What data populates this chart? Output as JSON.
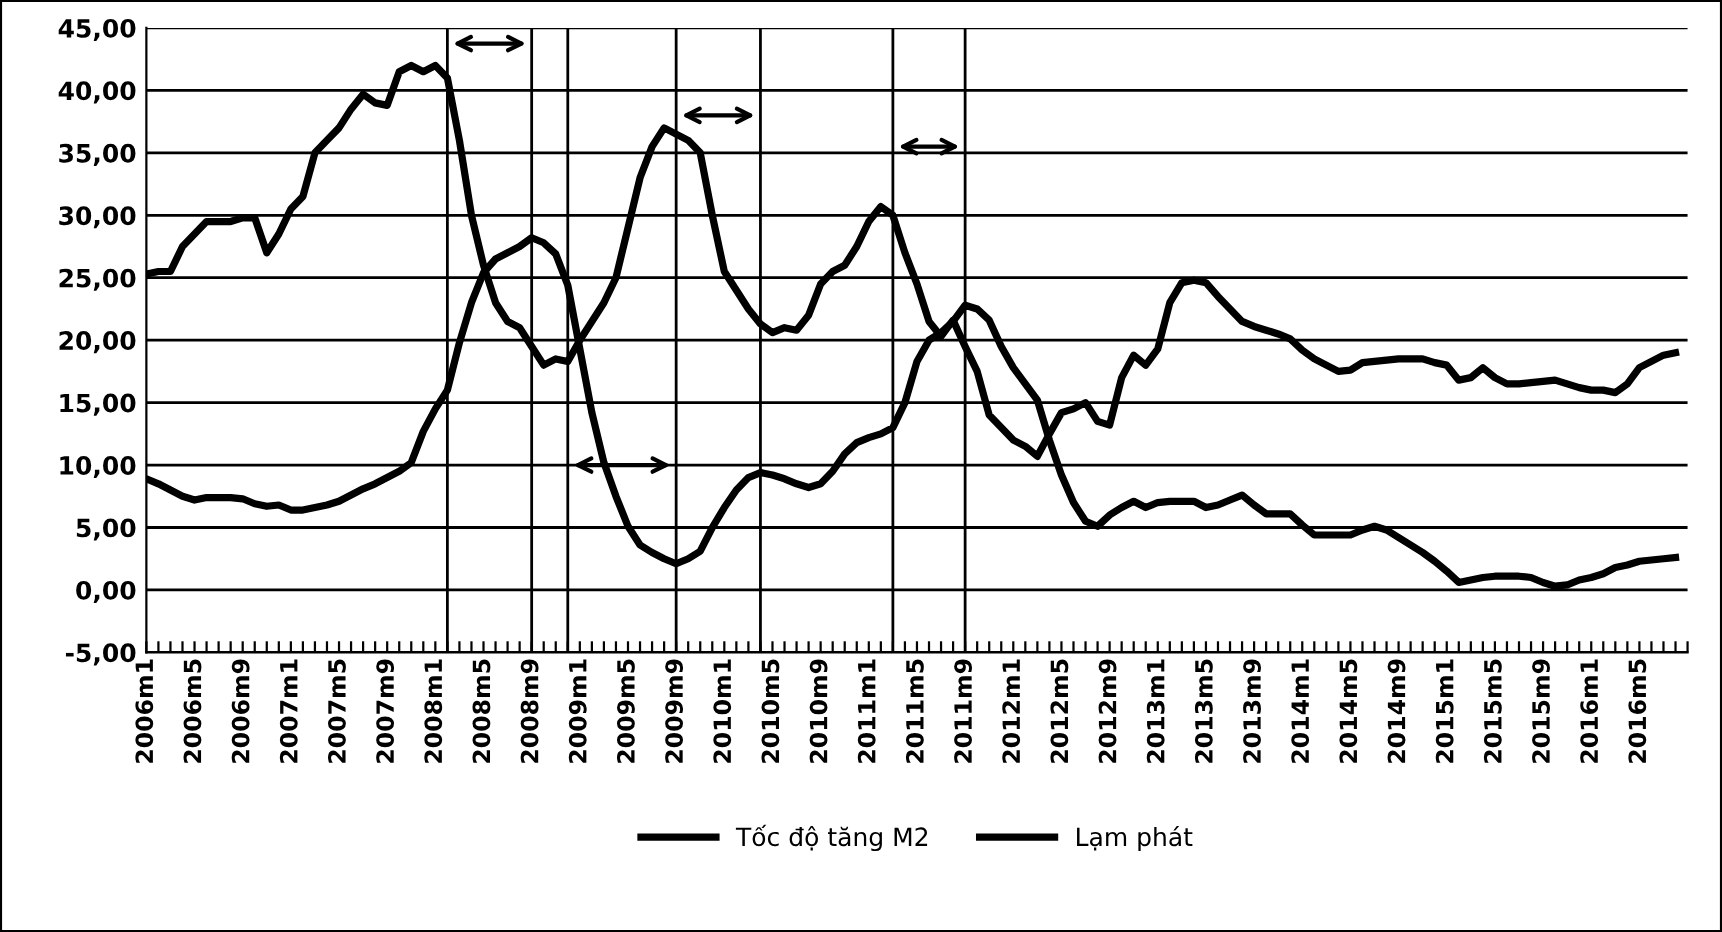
{
  "chart_data": {
    "type": "line",
    "x": [
      "2006-01",
      "2006-02",
      "2006-03",
      "2006-04",
      "2006-05",
      "2006-06",
      "2006-07",
      "2006-08",
      "2006-09",
      "2006-10",
      "2006-11",
      "2006-12",
      "2007-01",
      "2007-02",
      "2007-03",
      "2007-04",
      "2007-05",
      "2007-06",
      "2007-07",
      "2007-08",
      "2007-09",
      "2007-10",
      "2007-11",
      "2007-12",
      "2008-01",
      "2008-02",
      "2008-03",
      "2008-04",
      "2008-05",
      "2008-06",
      "2008-07",
      "2008-08",
      "2008-09",
      "2008-10",
      "2008-11",
      "2008-12",
      "2009-01",
      "2009-02",
      "2009-03",
      "2009-04",
      "2009-05",
      "2009-06",
      "2009-07",
      "2009-08",
      "2009-09",
      "2009-10",
      "2009-11",
      "2009-12",
      "2010-01",
      "2010-02",
      "2010-03",
      "2010-04",
      "2010-05",
      "2010-06",
      "2010-07",
      "2010-08",
      "2010-09",
      "2010-10",
      "2010-11",
      "2010-12",
      "2011-01",
      "2011-02",
      "2011-03",
      "2011-04",
      "2011-05",
      "2011-06",
      "2011-07",
      "2011-08",
      "2011-09",
      "2011-10",
      "2011-11",
      "2011-12",
      "2012-01",
      "2012-02",
      "2012-03",
      "2012-04",
      "2012-05",
      "2012-06",
      "2012-07",
      "2012-08",
      "2012-09",
      "2012-10",
      "2012-11",
      "2012-12",
      "2013-01",
      "2013-02",
      "2013-03",
      "2013-04",
      "2013-05",
      "2013-06",
      "2013-07",
      "2013-08",
      "2013-09",
      "2013-10",
      "2013-11",
      "2013-12",
      "2014-01",
      "2014-02",
      "2014-03",
      "2014-04",
      "2014-05",
      "2014-06",
      "2014-07",
      "2014-08",
      "2014-09",
      "2014-10",
      "2014-11",
      "2014-12",
      "2015-01",
      "2015-02",
      "2015-03",
      "2015-04",
      "2015-05",
      "2015-06",
      "2015-07",
      "2015-08",
      "2015-09",
      "2015-10",
      "2015-11",
      "2015-12",
      "2016-01",
      "2016-02",
      "2016-03",
      "2016-04",
      "2016-05",
      "2016-06",
      "2016-07",
      "2016-08"
    ],
    "series": [
      {
        "name": "Tốc độ tăng M2",
        "color": "#000000",
        "values": [
          25.3,
          25.5,
          25.5,
          27.5,
          28.5,
          29.5,
          29.5,
          29.5,
          29.8,
          29.8,
          27.0,
          28.5,
          30.5,
          31.5,
          35.0,
          36.0,
          37.0,
          38.5,
          39.7,
          39.0,
          38.8,
          41.5,
          42.0,
          41.5,
          42.0,
          41.0,
          36.0,
          30.0,
          26.0,
          23.0,
          21.5,
          21.0,
          19.5,
          18.0,
          18.5,
          18.3,
          20.0,
          21.5,
          23.0,
          25.0,
          29.0,
          33.0,
          35.5,
          37.0,
          36.5,
          36.0,
          35.0,
          30.0,
          25.5,
          24.0,
          22.5,
          21.3,
          20.6,
          21.0,
          20.8,
          22.0,
          24.5,
          25.5,
          26.0,
          27.5,
          29.5,
          30.7,
          30.0,
          27.0,
          24.5,
          21.5,
          20.3,
          21.6,
          19.5,
          17.5,
          14.0,
          13.0,
          12.0,
          11.5,
          10.7,
          12.5,
          14.2,
          14.5,
          15.0,
          13.5,
          13.2,
          17.0,
          18.8,
          18.0,
          19.3,
          23.0,
          24.6,
          24.8,
          24.6,
          23.5,
          22.5,
          21.5,
          21.1,
          20.8,
          20.5,
          20.1,
          19.2,
          18.5,
          18.0,
          17.5,
          17.6,
          18.2,
          18.3,
          18.4,
          18.5,
          18.5,
          18.5,
          18.2,
          18.0,
          16.8,
          17.0,
          17.8,
          17.0,
          16.5,
          16.5,
          16.6,
          16.7,
          16.8,
          16.5,
          16.2,
          16.0,
          16.0,
          15.8,
          16.5,
          17.8,
          18.3,
          18.8,
          19.0
        ]
      },
      {
        "name": "Lạm phát",
        "color": "#000000",
        "values": [
          8.9,
          8.5,
          8.0,
          7.5,
          7.2,
          7.4,
          7.4,
          7.4,
          7.3,
          6.9,
          6.7,
          6.8,
          6.4,
          6.4,
          6.6,
          6.8,
          7.1,
          7.6,
          8.1,
          8.5,
          9.0,
          9.5,
          10.2,
          12.7,
          14.5,
          16.0,
          19.8,
          23.0,
          25.4,
          26.5,
          27.0,
          27.5,
          28.2,
          27.8,
          26.9,
          24.4,
          19.3,
          14.2,
          10.2,
          7.5,
          5.1,
          3.6,
          3.0,
          2.5,
          2.1,
          2.5,
          3.1,
          5.0,
          6.6,
          8.0,
          9.0,
          9.4,
          9.2,
          8.9,
          8.5,
          8.2,
          8.5,
          9.5,
          10.9,
          11.8,
          12.2,
          12.5,
          13.0,
          15.0,
          18.3,
          20.0,
          20.6,
          21.5,
          22.8,
          22.5,
          21.6,
          19.5,
          17.8,
          16.5,
          15.2,
          12.0,
          9.2,
          7.0,
          5.5,
          5.1,
          6.0,
          6.6,
          7.1,
          6.6,
          7.0,
          7.1,
          7.1,
          7.1,
          6.6,
          6.8,
          7.2,
          7.6,
          6.8,
          6.1,
          6.1,
          6.1,
          5.2,
          4.4,
          4.4,
          4.4,
          4.4,
          4.8,
          5.1,
          4.8,
          4.2,
          3.6,
          3.0,
          2.3,
          1.5,
          0.6,
          0.8,
          1.0,
          1.1,
          1.1,
          1.1,
          1.0,
          0.6,
          0.3,
          0.4,
          0.8,
          1.0,
          1.3,
          1.8,
          2.0,
          2.3,
          2.4,
          2.5,
          2.6
        ]
      }
    ],
    "xlim": [
      "2006-01",
      "2016-09"
    ],
    "xticks": [
      {
        "value": "2006-01",
        "label": "2006m1"
      },
      {
        "value": "2006-02",
        "label": null
      },
      {
        "value": "2006-03",
        "label": null
      },
      {
        "value": "2006-04",
        "label": null
      },
      {
        "value": "2006-05",
        "label": "2006m5"
      },
      {
        "value": "2006-06",
        "label": null
      },
      {
        "value": "2006-07",
        "label": null
      },
      {
        "value": "2006-08",
        "label": null
      },
      {
        "value": "2006-09",
        "label": "2006m9"
      },
      {
        "value": "2006-10",
        "label": null
      },
      {
        "value": "2006-11",
        "label": null
      },
      {
        "value": "2006-12",
        "label": null
      },
      {
        "value": "2007-01",
        "label": "2007m1"
      },
      {
        "value": "2007-02",
        "label": null
      },
      {
        "value": "2007-03",
        "label": null
      },
      {
        "value": "2007-04",
        "label": null
      },
      {
        "value": "2007-05",
        "label": "2007m5"
      },
      {
        "value": "2007-06",
        "label": null
      },
      {
        "value": "2007-07",
        "label": null
      },
      {
        "value": "2007-08",
        "label": null
      },
      {
        "value": "2007-09",
        "label": "2007m9"
      },
      {
        "value": "2007-10",
        "label": null
      },
      {
        "value": "2007-11",
        "label": null
      },
      {
        "value": "2007-12",
        "label": null
      },
      {
        "value": "2008-01",
        "label": "2008m1"
      },
      {
        "value": "2008-02",
        "label": null
      },
      {
        "value": "2008-03",
        "label": null
      },
      {
        "value": "2008-04",
        "label": null
      },
      {
        "value": "2008-05",
        "label": "2008m5"
      },
      {
        "value": "2008-06",
        "label": null
      },
      {
        "value": "2008-07",
        "label": null
      },
      {
        "value": "2008-08",
        "label": null
      },
      {
        "value": "2008-09",
        "label": "2008m9"
      },
      {
        "value": "2008-10",
        "label": null
      },
      {
        "value": "2008-11",
        "label": null
      },
      {
        "value": "2008-12",
        "label": null
      },
      {
        "value": "2009-01",
        "label": "2009m1"
      },
      {
        "value": "2009-02",
        "label": null
      },
      {
        "value": "2009-03",
        "label": null
      },
      {
        "value": "2009-04",
        "label": null
      },
      {
        "value": "2009-05",
        "label": "2009m5"
      },
      {
        "value": "2009-06",
        "label": null
      },
      {
        "value": "2009-07",
        "label": null
      },
      {
        "value": "2009-08",
        "label": null
      },
      {
        "value": "2009-09",
        "label": "2009m9"
      },
      {
        "value": "2009-10",
        "label": null
      },
      {
        "value": "2009-11",
        "label": null
      },
      {
        "value": "2009-12",
        "label": null
      },
      {
        "value": "2010-01",
        "label": "2010m1"
      },
      {
        "value": "2010-02",
        "label": null
      },
      {
        "value": "2010-03",
        "label": null
      },
      {
        "value": "2010-04",
        "label": null
      },
      {
        "value": "2010-05",
        "label": "2010m5"
      },
      {
        "value": "2010-06",
        "label": null
      },
      {
        "value": "2010-07",
        "label": null
      },
      {
        "value": "2010-08",
        "label": null
      },
      {
        "value": "2010-09",
        "label": "2010m9"
      },
      {
        "value": "2010-10",
        "label": null
      },
      {
        "value": "2010-11",
        "label": null
      },
      {
        "value": "2010-12",
        "label": null
      },
      {
        "value": "2011-01",
        "label": "2011m1"
      },
      {
        "value": "2011-02",
        "label": null
      },
      {
        "value": "2011-03",
        "label": null
      },
      {
        "value": "2011-04",
        "label": null
      },
      {
        "value": "2011-05",
        "label": "2011m5"
      },
      {
        "value": "2011-06",
        "label": null
      },
      {
        "value": "2011-07",
        "label": null
      },
      {
        "value": "2011-08",
        "label": null
      },
      {
        "value": "2011-09",
        "label": "2011m9"
      },
      {
        "value": "2011-10",
        "label": null
      },
      {
        "value": "2011-11",
        "label": null
      },
      {
        "value": "2011-12",
        "label": null
      },
      {
        "value": "2012-01",
        "label": "2012m1"
      },
      {
        "value": "2012-02",
        "label": null
      },
      {
        "value": "2012-03",
        "label": null
      },
      {
        "value": "2012-04",
        "label": null
      },
      {
        "value": "2012-05",
        "label": "2012m5"
      },
      {
        "value": "2012-06",
        "label": null
      },
      {
        "value": "2012-07",
        "label": null
      },
      {
        "value": "2012-08",
        "label": null
      },
      {
        "value": "2012-09",
        "label": "2012m9"
      },
      {
        "value": "2012-10",
        "label": null
      },
      {
        "value": "2012-11",
        "label": null
      },
      {
        "value": "2012-12",
        "label": null
      },
      {
        "value": "2013-01",
        "label": "2013m1"
      },
      {
        "value": "2013-02",
        "label": null
      },
      {
        "value": "2013-03",
        "label": null
      },
      {
        "value": "2013-04",
        "label": null
      },
      {
        "value": "2013-05",
        "label": "2013m5"
      },
      {
        "value": "2013-06",
        "label": null
      },
      {
        "value": "2013-07",
        "label": null
      },
      {
        "value": "2013-08",
        "label": null
      },
      {
        "value": "2013-09",
        "label": "2013m9"
      },
      {
        "value": "2013-10",
        "label": null
      },
      {
        "value": "2013-11",
        "label": null
      },
      {
        "value": "2013-12",
        "label": null
      },
      {
        "value": "2014-01",
        "label": "2014m1"
      },
      {
        "value": "2014-02",
        "label": null
      },
      {
        "value": "2014-03",
        "label": null
      },
      {
        "value": "2014-04",
        "label": null
      },
      {
        "value": "2014-05",
        "label": "2014m5"
      },
      {
        "value": "2014-06",
        "label": null
      },
      {
        "value": "2014-07",
        "label": null
      },
      {
        "value": "2014-08",
        "label": null
      },
      {
        "value": "2014-09",
        "label": "2014m9"
      },
      {
        "value": "2014-10",
        "label": null
      },
      {
        "value": "2014-11",
        "label": null
      },
      {
        "value": "2014-12",
        "label": null
      },
      {
        "value": "2015-01",
        "label": "2015m1"
      },
      {
        "value": "2015-02",
        "label": null
      },
      {
        "value": "2015-03",
        "label": null
      },
      {
        "value": "2015-04",
        "label": null
      },
      {
        "value": "2015-05",
        "label": "2015m5"
      },
      {
        "value": "2015-06",
        "label": null
      },
      {
        "value": "2015-07",
        "label": null
      },
      {
        "value": "2015-08",
        "label": null
      },
      {
        "value": "2015-09",
        "label": "2015m9"
      },
      {
        "value": "2015-10",
        "label": null
      },
      {
        "value": "2015-11",
        "label": null
      },
      {
        "value": "2015-12",
        "label": null
      },
      {
        "value": "2016-01",
        "label": "2016m1"
      },
      {
        "value": "2016-02",
        "label": null
      },
      {
        "value": "2016-03",
        "label": null
      },
      {
        "value": "2016-04",
        "label": null
      },
      {
        "value": "2016-05",
        "label": "2016m5"
      },
      {
        "value": "2016-06",
        "label": null
      },
      {
        "value": "2016-07",
        "label": null
      },
      {
        "value": "2016-08",
        "label": null
      },
      {
        "value": "2016-09",
        "label": null
      }
    ],
    "ylim": [
      -5,
      45
    ],
    "yticks": [
      {
        "value": -5,
        "label": "-5,00"
      },
      {
        "value": 0,
        "label": "0,00"
      },
      {
        "value": 5,
        "label": "5,00"
      },
      {
        "value": 10,
        "label": "10,00"
      },
      {
        "value": 15,
        "label": "15,00"
      },
      {
        "value": 20,
        "label": "20,00"
      },
      {
        "value": 25,
        "label": "25,00"
      },
      {
        "value": 30,
        "label": "30,00"
      },
      {
        "value": 35,
        "label": "35,00"
      },
      {
        "value": 40,
        "label": "40,00"
      },
      {
        "value": 45,
        "label": "45,00"
      }
    ],
    "ref_lines": [
      {
        "axis": "x",
        "value": "2008-02",
        "color": "#000000"
      },
      {
        "axis": "x",
        "value": "2008-09",
        "color": "#000000"
      },
      {
        "axis": "x",
        "value": "2008-12",
        "color": "#000000"
      },
      {
        "axis": "x",
        "value": "2009-09",
        "color": "#000000"
      },
      {
        "axis": "x",
        "value": "2010-04",
        "color": "#000000"
      },
      {
        "axis": "x",
        "value": "2011-03",
        "color": "#000000"
      },
      {
        "axis": "x",
        "value": "2011-09",
        "color": "#000000"
      }
    ],
    "grid": "y",
    "legend": "bottom",
    "marker": "none",
    "line_style": "solid"
  }
}
